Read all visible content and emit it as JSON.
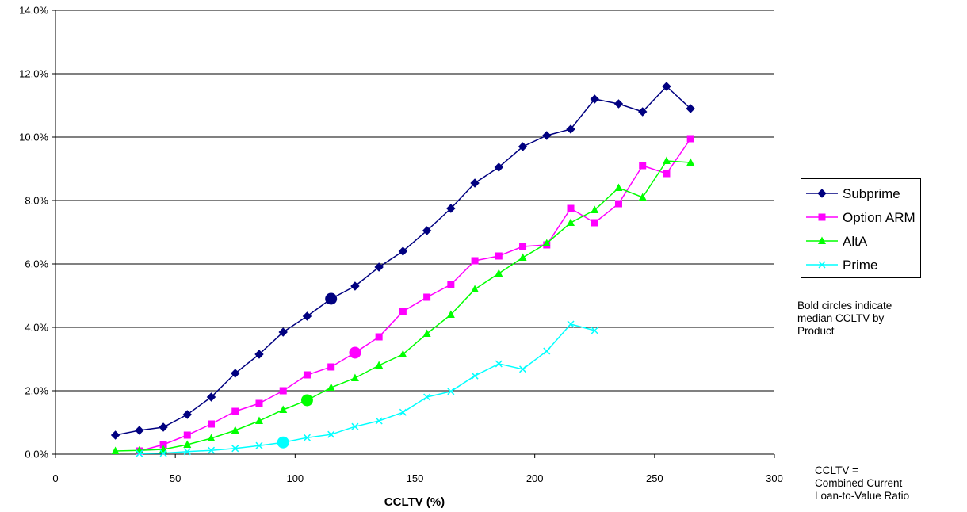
{
  "chart_data": {
    "type": "line",
    "title": "",
    "xlabel": "CCLTV (%)",
    "ylabel": "",
    "xlim": [
      0,
      300
    ],
    "ylim": [
      0,
      14
    ],
    "xticks": [
      0,
      50,
      100,
      150,
      200,
      250,
      300
    ],
    "yticks": [
      0,
      2,
      4,
      6,
      8,
      10,
      12,
      14
    ],
    "xtick_labels": [
      "0",
      "50",
      "100",
      "150",
      "200",
      "250",
      "300"
    ],
    "ytick_labels": [
      "0.0%",
      "2.0%",
      "4.0%",
      "6.0%",
      "8.0%",
      "10.0%",
      "12.0%",
      "14.0%"
    ],
    "grid": "horizontal",
    "legend_position": "right",
    "series": [
      {
        "name": "Subprime",
        "color": "#000080",
        "marker": "diamond",
        "x": [
          25,
          35,
          45,
          55,
          65,
          75,
          85,
          95,
          105,
          115,
          125,
          135,
          145,
          155,
          165,
          175,
          185,
          195,
          205,
          215,
          225,
          235,
          245,
          255,
          265
        ],
        "y": [
          0.6,
          0.75,
          0.85,
          1.25,
          1.8,
          2.55,
          3.15,
          3.85,
          4.35,
          4.9,
          5.3,
          5.9,
          6.4,
          7.05,
          7.75,
          8.55,
          9.05,
          9.7,
          10.05,
          10.25,
          11.2,
          11.05,
          10.8,
          11.6,
          10.9
        ],
        "median": {
          "x": 115,
          "y": 4.9
        }
      },
      {
        "name": "Option ARM",
        "color": "#FF00FF",
        "marker": "square",
        "x": [
          35,
          45,
          55,
          65,
          75,
          85,
          95,
          105,
          115,
          125,
          135,
          145,
          155,
          165,
          175,
          185,
          195,
          205,
          215,
          225,
          235,
          245,
          255,
          265
        ],
        "y": [
          0.1,
          0.3,
          0.6,
          0.95,
          1.35,
          1.6,
          2.0,
          2.5,
          2.75,
          3.2,
          3.7,
          4.5,
          4.95,
          5.35,
          6.1,
          6.25,
          6.55,
          6.6,
          7.75,
          7.3,
          7.9,
          9.1,
          8.85,
          9.95
        ],
        "median": {
          "x": 125,
          "y": 3.2
        }
      },
      {
        "name": "AltA",
        "color": "#00FF00",
        "marker": "triangle",
        "x": [
          25,
          35,
          45,
          55,
          65,
          75,
          85,
          95,
          105,
          115,
          125,
          135,
          145,
          155,
          165,
          175,
          185,
          195,
          205,
          215,
          225,
          235,
          245,
          255,
          265
        ],
        "y": [
          0.1,
          0.12,
          0.15,
          0.3,
          0.5,
          0.75,
          1.05,
          1.4,
          1.7,
          2.1,
          2.4,
          2.8,
          3.15,
          3.8,
          4.4,
          5.2,
          5.7,
          6.2,
          6.65,
          7.3,
          7.7,
          8.4,
          8.1,
          9.25,
          9.2
        ],
        "median": {
          "x": 105,
          "y": 1.7
        }
      },
      {
        "name": "Prime",
        "color": "#00FFFF",
        "marker": "x",
        "x": [
          35,
          45,
          55,
          65,
          75,
          85,
          95,
          105,
          115,
          125,
          135,
          145,
          155,
          165,
          175,
          185,
          195,
          205,
          215,
          225
        ],
        "y": [
          0.02,
          0.03,
          0.08,
          0.12,
          0.18,
          0.27,
          0.37,
          0.52,
          0.62,
          0.87,
          1.05,
          1.32,
          1.8,
          1.98,
          2.47,
          2.85,
          2.68,
          3.25,
          4.1,
          3.9
        ],
        "median": {
          "x": 95,
          "y": 0.37
        }
      }
    ]
  },
  "notes": {
    "median": "Bold circles indicate\nmedian CCLTV by\nProduct",
    "cltv": "CCLTV =\nCombined Current\nLoan-to-Value Ratio"
  }
}
